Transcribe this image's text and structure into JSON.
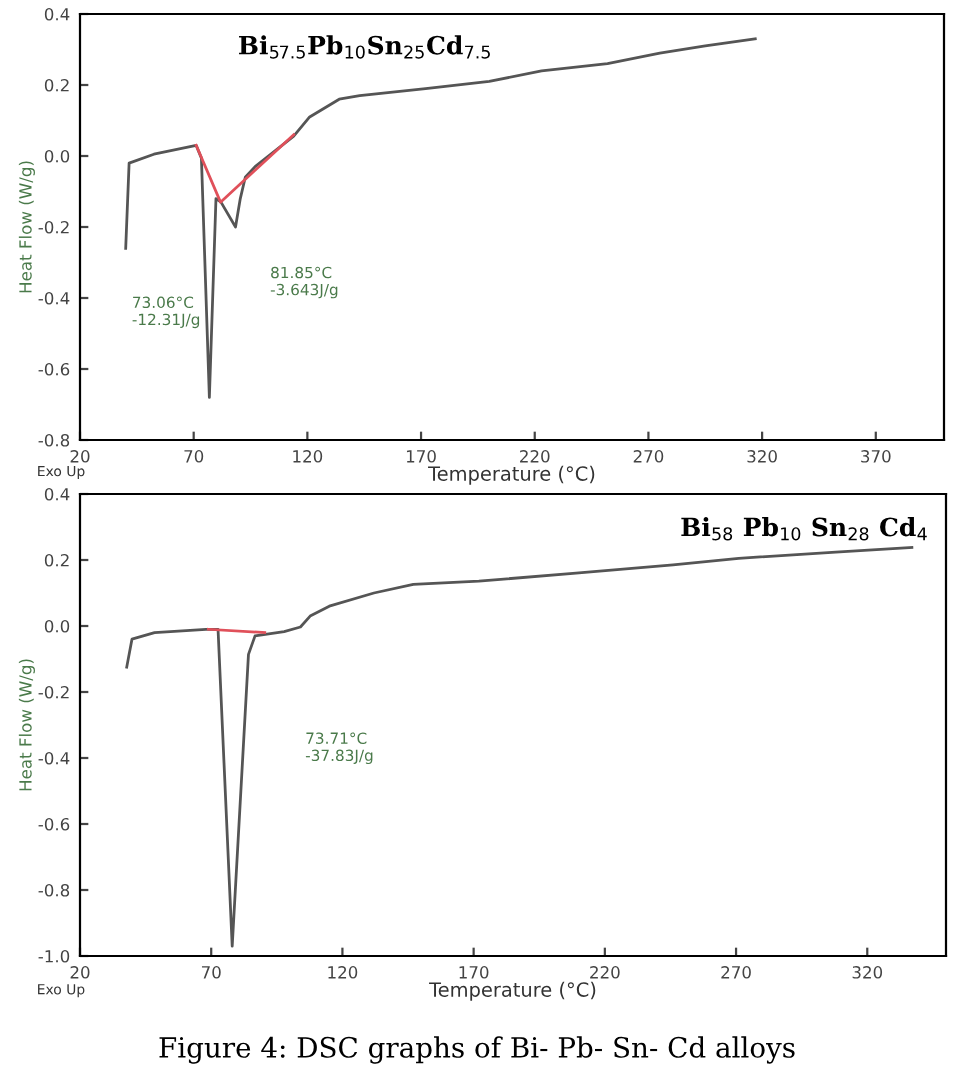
{
  "chart_data": [
    {
      "type": "line",
      "title": "Bi$_{57.5}$Pb$_{10}$Sn$_{25}$Cd$_{7.5}$",
      "xlabel": "Temperature (°C)",
      "ylabel": "Heat Flow (W/g)",
      "xlim": [
        20,
        400
      ],
      "xticks": [
        20,
        70,
        120,
        170,
        220,
        270,
        320,
        370
      ],
      "ylim": [
        -0.8,
        0.4
      ],
      "yticks": [
        {
          "value": -0.8,
          "label": "-0.8"
        },
        {
          "value": -0.6,
          "label": "-0.6"
        },
        {
          "value": -0.4,
          "label": "-0.4"
        },
        {
          "value": -0.2,
          "label": "-0.2"
        },
        {
          "value": 0.0,
          "label": "0.0"
        },
        {
          "value": 0.2,
          "label": "0.2"
        },
        {
          "value": 0.4,
          "label": "0.4"
        }
      ],
      "grid": false,
      "legend": false,
      "series": [
        {
          "color": "#555555",
          "x": [
            40.1,
            41.6,
            52.5,
            71.1,
            73.4,
            76.9,
            79.8,
            82.0,
            88.4,
            90.5,
            92.7,
            97,
            114,
            121,
            134,
            143,
            172,
            200,
            223,
            252,
            275,
            295,
            317
          ],
          "values": [
            -0.26,
            -0.02,
            0.005,
            0.03,
            -0.006,
            -0.68,
            -0.12,
            -0.13,
            -0.2,
            -0.12,
            -0.06,
            -0.03,
            0.056,
            0.11,
            0.16,
            0.17,
            0.19,
            0.21,
            0.24,
            0.26,
            0.29,
            0.31,
            0.33
          ]
        },
        {
          "color": "#e0505a",
          "x": [
            71.1,
            81.8,
            97,
            114
          ],
          "values": [
            0.03,
            -0.13,
            -0.04,
            0.06
          ]
        }
      ],
      "annotations": [
        "73.06°C\n-12.31J/g",
        "81.85°C\n-3.643J/g",
        "Exo Up"
      ]
    },
    {
      "type": "line",
      "title": "Bi$_{58}$ Pb$_{10}$ Sn$_{28}$ Cd$_{4}$",
      "xlabel": "Temperature (°C)",
      "ylabel": "Heat Flow (W/g)",
      "xlim": [
        20,
        350
      ],
      "xticks": [
        20,
        70,
        120,
        170,
        220,
        270,
        320
      ],
      "ylim": [
        -1.0,
        0.4
      ],
      "yticks": [
        {
          "value": -1.0,
          "label": "-1.0"
        },
        {
          "value": -0.8,
          "label": "-0.8"
        },
        {
          "value": -0.6,
          "label": "-0.6"
        },
        {
          "value": -0.4,
          "label": "-0.4"
        },
        {
          "value": -0.2,
          "label": "-0.2"
        },
        {
          "value": 0.0,
          "label": "0.0"
        },
        {
          "value": 0.2,
          "label": "0.2"
        },
        {
          "value": 0.4,
          "label": "0.4"
        }
      ],
      "grid": false,
      "legend": false,
      "series": [
        {
          "color": "#555555",
          "x": [
            37.8,
            39.8,
            48.4,
            68,
            72.6,
            78,
            84.2,
            86.7,
            97.8,
            104,
            107.7,
            115,
            132,
            147,
            172,
            209,
            246,
            271,
            308,
            337
          ],
          "values": [
            -0.125,
            -0.04,
            -0.02,
            -0.01,
            -0.01,
            -0.97,
            -0.086,
            -0.03,
            -0.017,
            -0.003,
            0.03,
            0.06,
            0.1,
            0.126,
            0.136,
            0.16,
            0.185,
            0.205,
            0.224,
            0.238
          ]
        },
        {
          "color": "#e0505a",
          "x": [
            68.9,
            90.4
          ],
          "values": [
            -0.01,
            -0.02
          ]
        }
      ],
      "annotations": [
        "73.71°C\n-37.83J/g",
        "Exo Up",
        "Figure 4: DSC graphs of Bi- Pb- Sn- Cd alloys"
      ]
    }
  ]
}
